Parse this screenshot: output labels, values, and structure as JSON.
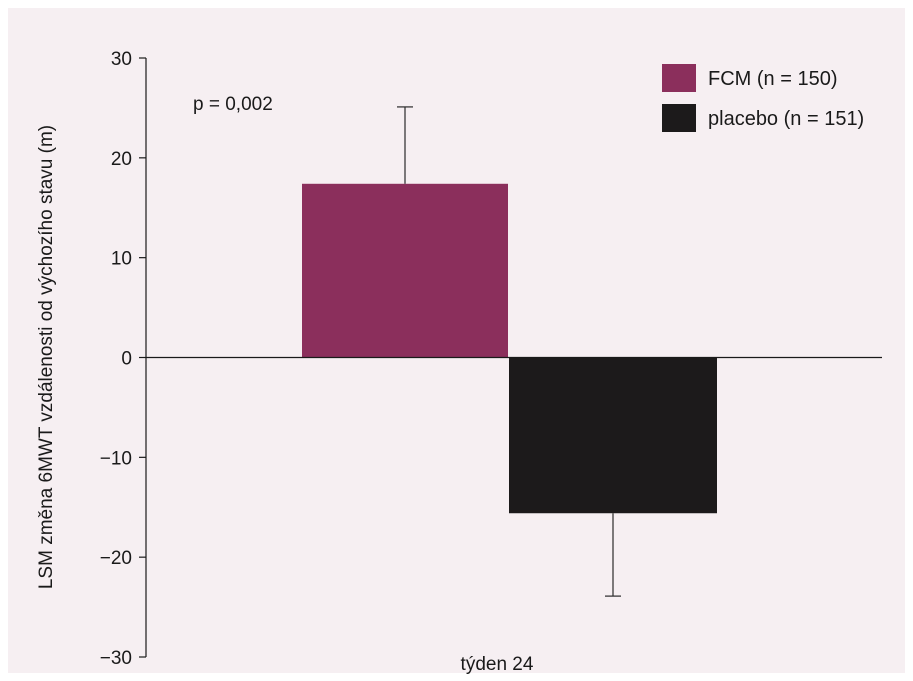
{
  "chart_data": {
    "type": "bar",
    "categories": [
      "týden 24"
    ],
    "xlabel": "týden 24",
    "ylabel": "LSM změna 6MWT vzdálenosti od výchozího stavu (m)",
    "ylim": [
      -30,
      30
    ],
    "yticks": [
      30,
      20,
      10,
      0,
      -10,
      -20,
      -30
    ],
    "ytick_labels": [
      "30",
      "20",
      "10",
      "0",
      "−10",
      "−20",
      "−30"
    ],
    "grid": false,
    "legend_position": "top-right",
    "series": [
      {
        "name": "FCM (n = 150)",
        "value": 17.4,
        "error_upper": 25.1,
        "color": "#8b2f5c"
      },
      {
        "name": "placebo (n = 151)",
        "value": -15.6,
        "error_lower": -23.9,
        "color": "#1c1a1b"
      }
    ],
    "annotation": "p = 0,002"
  }
}
